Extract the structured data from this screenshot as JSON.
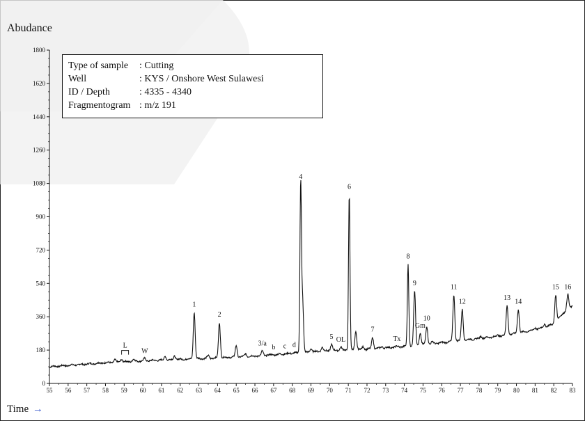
{
  "ylabel": "Abudance",
  "xlabel": "Time",
  "xlabel_arrow": "→",
  "info": [
    {
      "key": "Type of sample",
      "value": ": Cutting"
    },
    {
      "key": "Well",
      "value": ": KYS / Onshore West Sulawesi"
    },
    {
      "key": "ID / Depth",
      "value": ": 4335 - 4340"
    },
    {
      "key": "Fragmentogram",
      "value": ": m/z 191"
    }
  ],
  "colors": {
    "trace": "#111111",
    "watermark": "#e6e6e6",
    "arrow": "#3355cc"
  },
  "chart_data": {
    "type": "line",
    "xlim": [
      55,
      83
    ],
    "ylim": [
      0,
      1800
    ],
    "xticks": [
      55,
      56,
      57,
      58,
      59,
      60,
      61,
      62,
      63,
      64,
      65,
      66,
      67,
      68,
      69,
      70,
      71,
      72,
      73,
      74,
      75,
      76,
      77,
      78,
      79,
      80,
      81,
      82,
      83
    ],
    "yticks": [
      0,
      180,
      360,
      540,
      720,
      900,
      1080,
      1260,
      1440,
      1620,
      1800
    ],
    "baseline": [
      [
        55,
        90
      ],
      [
        58,
        112
      ],
      [
        60,
        122
      ],
      [
        62,
        130
      ],
      [
        64,
        138
      ],
      [
        66,
        148
      ],
      [
        68,
        162
      ],
      [
        69,
        170
      ],
      [
        70,
        178
      ],
      [
        72,
        185
      ],
      [
        74,
        200
      ],
      [
        75,
        210
      ],
      [
        76,
        220
      ],
      [
        77,
        232
      ],
      [
        78,
        242
      ],
      [
        79,
        255
      ],
      [
        80,
        270
      ],
      [
        81,
        290
      ],
      [
        82,
        320
      ],
      [
        82.5,
        380
      ],
      [
        83,
        420
      ]
    ],
    "peaks": [
      {
        "label": "1",
        "x": 62.75,
        "y": 385
      },
      {
        "label": "2",
        "x": 64.1,
        "y": 330
      },
      {
        "label": "3/a",
        "x": 66.4,
        "y": 175
      },
      {
        "label": "b",
        "x": 67.0,
        "y": 155
      },
      {
        "label": "c",
        "x": 67.6,
        "y": 160
      },
      {
        "label": "d",
        "x": 68.1,
        "y": 168
      },
      {
        "label": "4",
        "x": 68.45,
        "y": 1075
      },
      {
        "label": "5",
        "x": 70.1,
        "y": 210
      },
      {
        "label": "OL",
        "x": 70.6,
        "y": 195
      },
      {
        "label": "6",
        "x": 71.05,
        "y": 1020
      },
      {
        "label": "7",
        "x": 72.3,
        "y": 250
      },
      {
        "label": "Tx",
        "x": 73.6,
        "y": 200
      },
      {
        "label": "8",
        "x": 74.2,
        "y": 645
      },
      {
        "label": "9",
        "x": 74.55,
        "y": 500
      },
      {
        "label": "Gm",
        "x": 74.85,
        "y": 270
      },
      {
        "label": "10",
        "x": 75.2,
        "y": 310
      },
      {
        "label": "11",
        "x": 76.65,
        "y": 480
      },
      {
        "label": "12",
        "x": 77.1,
        "y": 400
      },
      {
        "label": "13",
        "x": 79.5,
        "y": 420
      },
      {
        "label": "14",
        "x": 80.1,
        "y": 400
      },
      {
        "label": "15",
        "x": 82.1,
        "y": 480
      },
      {
        "label": "16",
        "x": 82.75,
        "y": 480
      }
    ],
    "minor_peaks": [
      [
        58.5,
        128
      ],
      [
        58.85,
        132
      ],
      [
        59.5,
        130
      ],
      [
        60.1,
        135
      ],
      [
        61.2,
        148
      ],
      [
        61.7,
        150
      ],
      [
        63.5,
        150
      ],
      [
        65.0,
        205
      ],
      [
        65.5,
        160
      ],
      [
        69.0,
        190
      ],
      [
        69.6,
        195
      ],
      [
        71.4,
        280
      ],
      [
        71.8,
        200
      ],
      [
        72.8,
        200
      ],
      [
        75.5,
        225
      ],
      [
        78.1,
        255
      ],
      [
        79.0,
        260
      ],
      [
        81.0,
        300
      ],
      [
        81.5,
        320
      ],
      [
        68.55,
        460
      ]
    ],
    "annotations": [
      {
        "text": "L",
        "x": 59.05,
        "y": 178
      },
      {
        "text": "W",
        "x": 60.1,
        "y": 148
      }
    ],
    "grid": false
  }
}
